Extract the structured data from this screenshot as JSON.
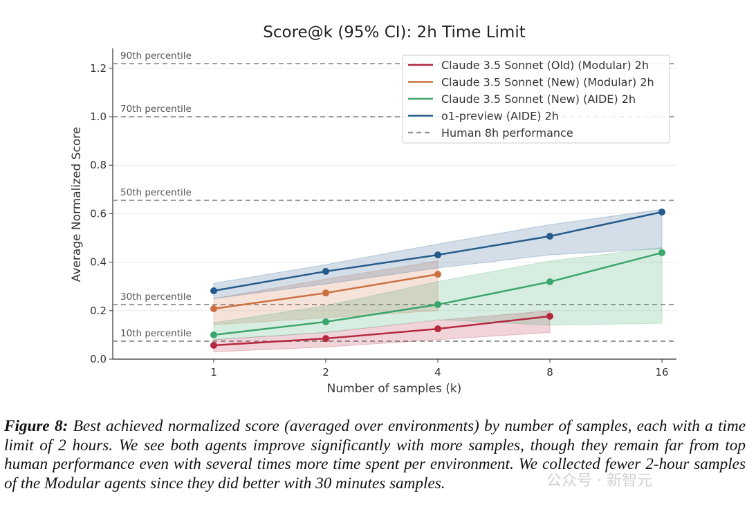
{
  "chart_data": {
    "type": "line",
    "title": "Score@k (95% CI): 2h Time Limit",
    "xlabel": "Number of samples (k)",
    "ylabel": "Average Normalized Score",
    "xscale": "log2",
    "x_ticks": [
      1,
      2,
      4,
      8,
      16
    ],
    "y_ticks": [
      "0.0",
      "0.2",
      "0.4",
      "0.6",
      "0.8",
      "1.0",
      "1.2"
    ],
    "ylim": [
      0,
      1.28
    ],
    "grid": "horizontal",
    "legend_position": "top-right",
    "series": [
      {
        "name": "Claude 3.5 Sonnet (Old) (Modular) 2h",
        "color": "#b5283f",
        "x": [
          1,
          2,
          4,
          8
        ],
        "values": [
          0.057,
          0.085,
          0.125,
          0.177
        ],
        "ci_low": [
          0.03,
          0.05,
          0.08,
          0.11
        ],
        "ci_high": [
          0.08,
          0.11,
          0.16,
          0.2
        ]
      },
      {
        "name": "Claude 3.5 Sonnet (New) (Modular) 2h",
        "color": "#cc7040",
        "x": [
          1,
          2,
          4
        ],
        "values": [
          0.208,
          0.273,
          0.35
        ],
        "ci_low": [
          0.142,
          0.17,
          0.2
        ],
        "ci_high": [
          0.25,
          0.33,
          0.405
        ]
      },
      {
        "name": "Claude 3.5 Sonnet (New) (AIDE) 2h",
        "color": "#3aa66b",
        "x": [
          1,
          2,
          4,
          8,
          16
        ],
        "values": [
          0.1,
          0.154,
          0.225,
          0.319,
          0.439
        ],
        "ci_low": [
          0.08,
          0.11,
          0.163,
          0.14,
          0.148
        ],
        "ci_high": [
          0.15,
          0.22,
          0.32,
          0.405,
          0.46
        ]
      },
      {
        "name": "o1-preview (AIDE) 2h",
        "color": "#245a8c",
        "x": [
          1,
          2,
          4,
          8,
          16
        ],
        "values": [
          0.282,
          0.362,
          0.43,
          0.507,
          0.607
        ],
        "ci_low": [
          0.25,
          0.31,
          0.376,
          0.43,
          0.456
        ],
        "ci_high": [
          0.313,
          0.39,
          0.475,
          0.555,
          0.618
        ]
      }
    ],
    "reference_lines": {
      "legend_label": "Human 8h performance",
      "lines": [
        {
          "label": "90th percentile",
          "value": 1.219
        },
        {
          "label": "70th percentile",
          "value": 1.0
        },
        {
          "label": "50th percentile",
          "value": 0.655
        },
        {
          "label": "30th percentile",
          "value": 0.225
        },
        {
          "label": "10th percentile",
          "value": 0.074
        }
      ]
    }
  },
  "caption": {
    "label": "Figure 8:",
    "text": " Best achieved normalized score (averaged over environments) by number of samples, each with a time limit of 2 hours. We see both agents improve significantly with more samples, though they remain far from top human performance even with several times more time spent per environment. We collected fewer 2-hour samples of the Modular agents since they did better with 30 minutes samples."
  },
  "watermark": "公众号 · 新智元"
}
